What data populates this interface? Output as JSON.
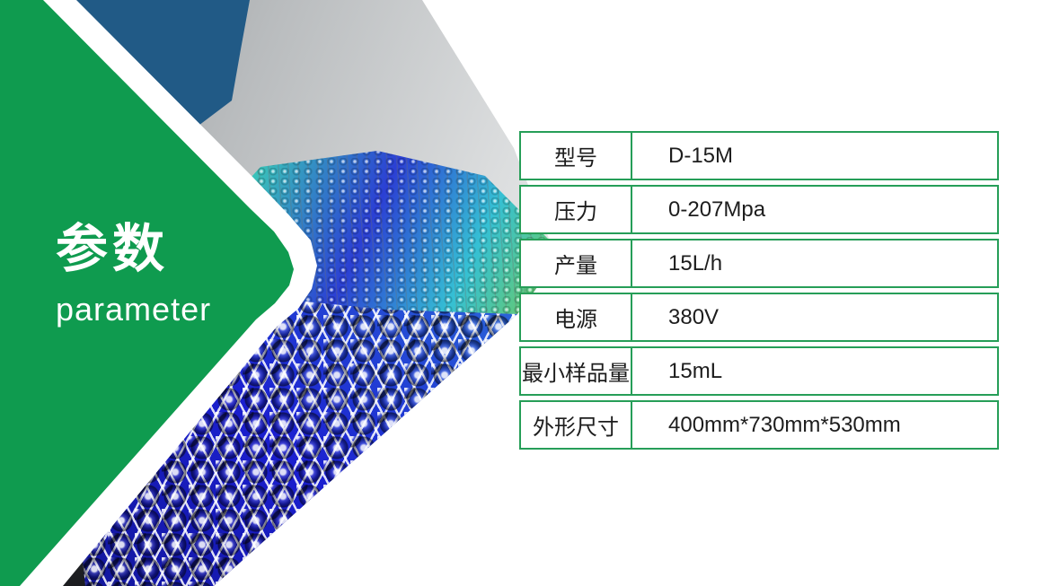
{
  "colors": {
    "green": "#0f9b4f",
    "table_border": "#269e58",
    "text_dark": "#1d1d1d",
    "background": "#ffffff"
  },
  "badge": {
    "title_zh": "参数",
    "title_en": "parameter"
  },
  "illustration": {
    "name": "molecular-structure-collage",
    "elements": [
      "blue-atom-sphere-cluster",
      "rainbow-ball-lattice-sheet",
      "blue-graphene-lattice"
    ]
  },
  "table": {
    "rows": [
      {
        "label": "型号",
        "value": "D-15M"
      },
      {
        "label": "压力",
        "value": "0-207Mpa"
      },
      {
        "label": "产量",
        "value": "15L/h"
      },
      {
        "label": "电源",
        "value": "380V"
      },
      {
        "label": "最小样品量",
        "value": "15mL"
      },
      {
        "label": "外形尺寸",
        "value": "400mm*730mm*530mm"
      }
    ]
  }
}
